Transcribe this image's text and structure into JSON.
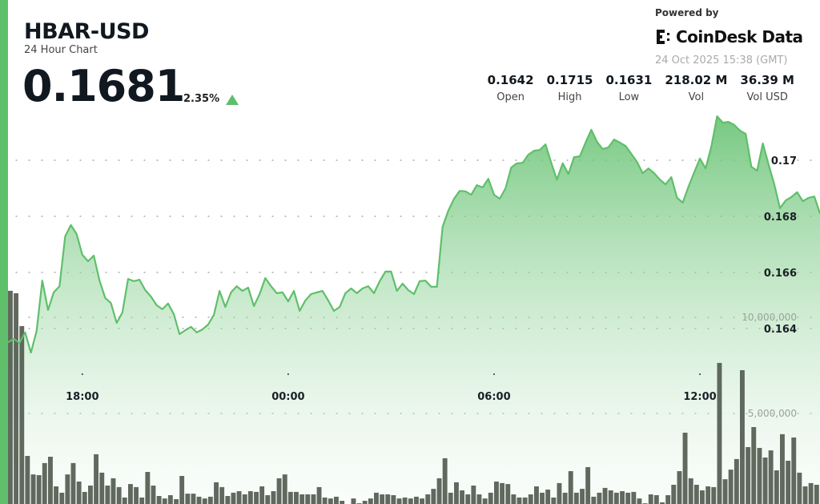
{
  "header": {
    "symbol": "HBAR-USD",
    "subtitle": "24 Hour Chart",
    "price": "0.1681",
    "change": "2.35%",
    "change_direction": "up",
    "powered_by": "Powered by",
    "brand": "CoinDesk Data",
    "timestamp": "24 Oct 2025 15:38 (GMT)"
  },
  "stats": [
    {
      "value": "0.1642",
      "label": "Open"
    },
    {
      "value": "0.1715",
      "label": "High"
    },
    {
      "value": "0.1631",
      "label": "Low"
    },
    {
      "value": "218.02 M",
      "label": "Vol"
    },
    {
      "value": "36.39 M",
      "label": "Vol USD"
    }
  ],
  "colors": {
    "accent": "#5fbf6b",
    "line": "#5fbf6b",
    "volume": "#4b5449"
  },
  "chart_data": {
    "type": "area",
    "x_start": "15:50",
    "x_end": "15:30",
    "interval_minutes": 10,
    "x_ticks": [
      "18:00",
      "00:00",
      "06:00",
      "12:00"
    ],
    "price_axis": {
      "ticks": [
        0.164,
        0.166,
        0.168,
        0.17
      ],
      "tick_labels": [
        "0.164",
        "0.166",
        "0.168",
        "0.17"
      ],
      "position": "right"
    },
    "volume_axis": {
      "ticks": [
        5000000,
        10000000
      ],
      "tick_labels": [
        "5,000,000",
        "10,000,000"
      ],
      "position": "right"
    },
    "grid": true,
    "price": [
      0.16351,
      0.16363,
      0.16349,
      0.16386,
      0.16314,
      0.16391,
      0.16571,
      0.16466,
      0.16529,
      0.16551,
      0.16729,
      0.16769,
      0.16737,
      0.16663,
      0.1664,
      0.1666,
      0.16571,
      0.16509,
      0.16491,
      0.1642,
      0.16457,
      0.16577,
      0.16569,
      0.16574,
      0.16537,
      0.16514,
      0.16483,
      0.16469,
      0.16489,
      0.16451,
      0.1638,
      0.16394,
      0.16406,
      0.16386,
      0.16397,
      0.16414,
      0.16449,
      0.16534,
      0.16477,
      0.16529,
      0.16551,
      0.16534,
      0.16546,
      0.1648,
      0.16523,
      0.1658,
      0.16551,
      0.16526,
      0.16529,
      0.16497,
      0.16534,
      0.16463,
      0.165,
      0.16523,
      0.16529,
      0.16534,
      0.165,
      0.16463,
      0.16477,
      0.16526,
      0.16543,
      0.16526,
      0.16543,
      0.16551,
      0.16526,
      0.16569,
      0.16603,
      0.16603,
      0.16534,
      0.1656,
      0.16537,
      0.16523,
      0.16569,
      0.16571,
      0.16549,
      0.16549,
      0.16763,
      0.1682,
      0.16863,
      0.16891,
      0.16889,
      0.16877,
      0.16911,
      0.16903,
      0.16934,
      0.16877,
      0.16863,
      0.169,
      0.16974,
      0.16989,
      0.16991,
      0.1702,
      0.17034,
      0.17037,
      0.17057,
      0.16991,
      0.16931,
      0.16989,
      0.16951,
      0.17011,
      0.17014,
      0.17063,
      0.17109,
      0.17066,
      0.1704,
      0.17046,
      0.17074,
      0.17063,
      0.17051,
      0.17023,
      0.16994,
      0.16954,
      0.16971,
      0.16954,
      0.16931,
      0.16914,
      0.1694,
      0.16866,
      0.16849,
      0.16906,
      0.16957,
      0.17006,
      0.16971,
      0.17049,
      0.17157,
      0.17134,
      0.17137,
      0.17126,
      0.17106,
      0.17094,
      0.16977,
      0.16963,
      0.1706,
      0.16986,
      0.16914,
      0.16829,
      0.16857,
      0.16869,
      0.16886,
      0.16854,
      0.16866,
      0.16871,
      0.1681
    ],
    "volume_millions": [
      11.38,
      11.25,
      9.54,
      2.79,
      1.83,
      1.79,
      2.42,
      2.75,
      1.21,
      0.88,
      1.83,
      2.42,
      1.46,
      0.92,
      1.25,
      2.88,
      1.92,
      1.25,
      1.63,
      1.17,
      0.63,
      1.33,
      1.17,
      0.63,
      1.96,
      1.25,
      0.71,
      0.58,
      0.75,
      0.54,
      1.75,
      0.83,
      0.83,
      0.67,
      0.58,
      0.67,
      1.42,
      1.17,
      0.71,
      0.88,
      0.96,
      0.79,
      0.96,
      0.92,
      1.21,
      0.75,
      0.96,
      1.63,
      1.83,
      0.92,
      0.92,
      0.79,
      0.79,
      0.79,
      1.17,
      0.63,
      0.58,
      0.67,
      0.46,
      0.29,
      0.58,
      0.33,
      0.46,
      0.58,
      0.88,
      0.79,
      0.79,
      0.75,
      0.58,
      0.63,
      0.58,
      0.67,
      0.58,
      0.79,
      1.08,
      1.63,
      2.67,
      0.88,
      1.42,
      1.0,
      0.79,
      1.25,
      0.79,
      0.58,
      0.88,
      1.46,
      1.38,
      1.33,
      0.79,
      0.63,
      0.63,
      0.79,
      1.21,
      0.88,
      1.04,
      0.63,
      1.38,
      0.88,
      2.0,
      0.88,
      1.08,
      2.21,
      0.67,
      0.88,
      1.13,
      1.0,
      0.88,
      0.96,
      0.88,
      0.92,
      0.58,
      0.33,
      0.79,
      0.75,
      0.38,
      0.75,
      1.29,
      2.0,
      4.0,
      1.63,
      1.29,
      1.0,
      1.21,
      1.17,
      7.63,
      1.58,
      2.08,
      2.63,
      7.25,
      3.25,
      4.29,
      3.21,
      2.71,
      3.08,
      2.04,
      3.92,
      2.54,
      3.75,
      1.92,
      1.21,
      1.38,
      1.29
    ]
  }
}
